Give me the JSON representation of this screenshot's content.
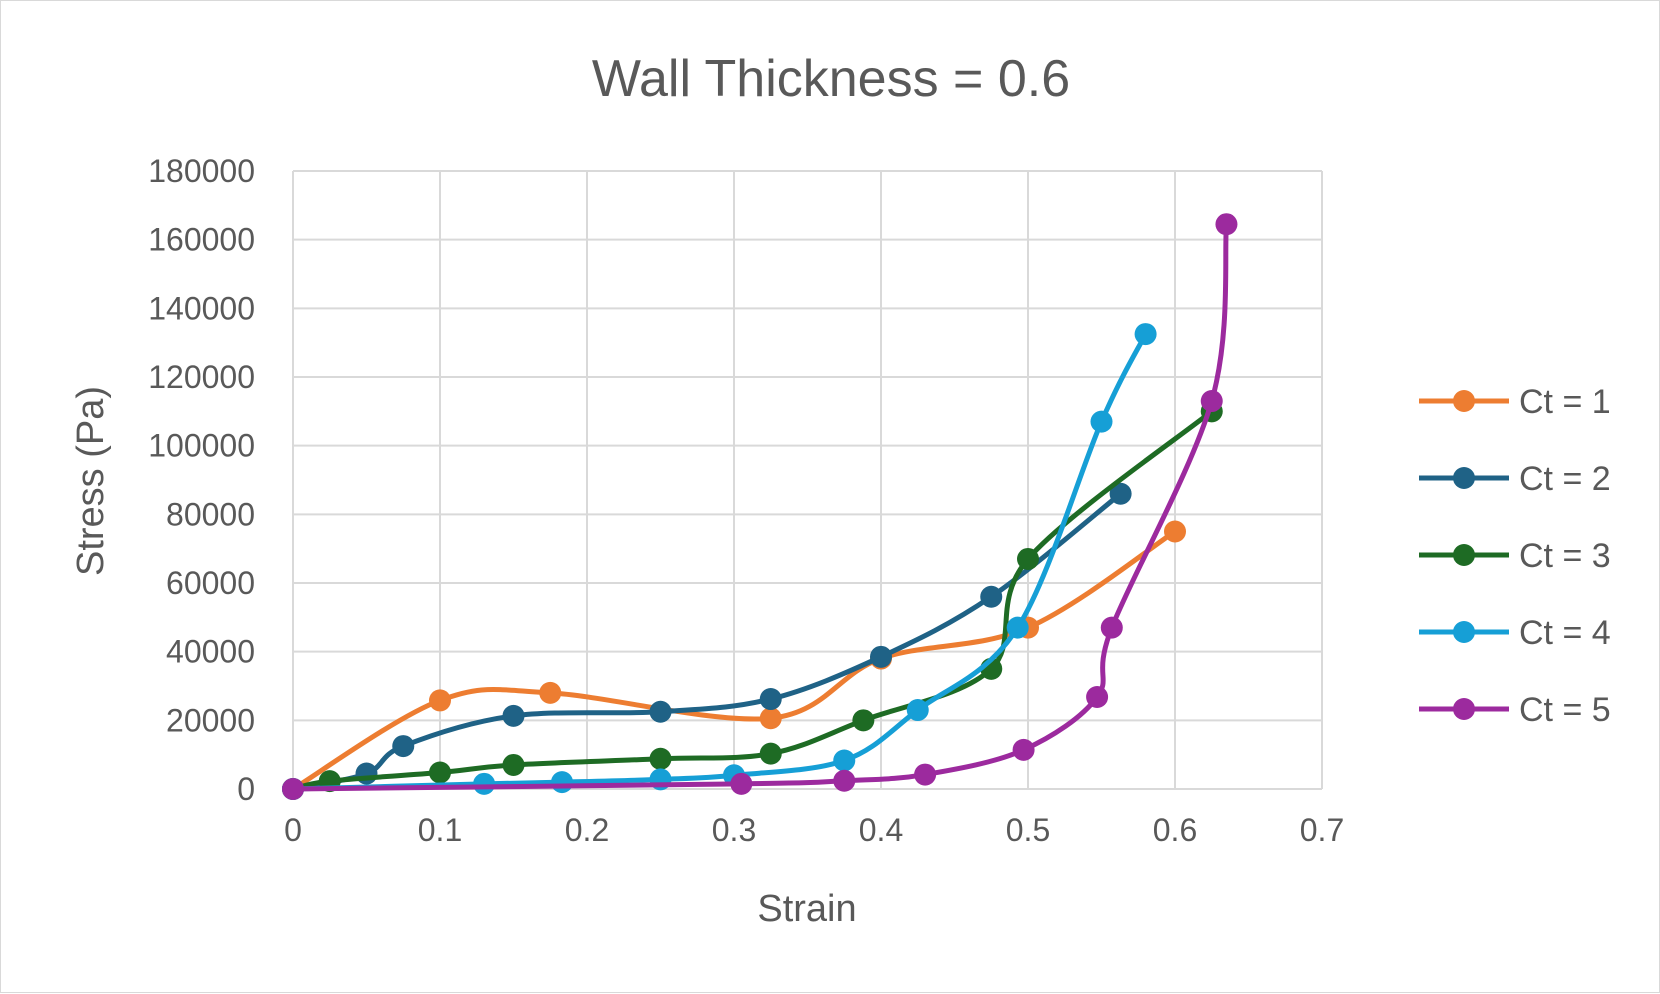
{
  "chart_data": {
    "type": "scatter",
    "title": "Wall Thickness = 0.6",
    "xlabel": "Strain",
    "ylabel": "Stress (Pa)",
    "xlim": [
      0,
      0.7
    ],
    "ylim": [
      0,
      180000
    ],
    "xticks": [
      "0",
      "0.1",
      "0.2",
      "0.3",
      "0.4",
      "0.5",
      "0.6",
      "0.7"
    ],
    "yticks": [
      "0",
      "20000",
      "40000",
      "60000",
      "80000",
      "100000",
      "120000",
      "140000",
      "160000",
      "180000"
    ],
    "grid": true,
    "legend_position": "right",
    "smooth_lines": true,
    "series": [
      {
        "name": "Ct = 1",
        "color": "#ED7D31",
        "x": [
          0,
          0.1,
          0.175,
          0.325,
          0.4,
          0.5,
          0.6
        ],
        "y": [
          0,
          25800,
          28000,
          20600,
          38000,
          47000,
          75000
        ]
      },
      {
        "name": "Ct = 2",
        "color": "#1F6286",
        "x": [
          0,
          0.05,
          0.075,
          0.15,
          0.25,
          0.325,
          0.4,
          0.475,
          0.563
        ],
        "y": [
          0,
          4500,
          12500,
          21300,
          22500,
          26200,
          38500,
          56000,
          86000
        ]
      },
      {
        "name": "Ct = 3",
        "color": "#1E6B24",
        "x": [
          0,
          0.025,
          0.1,
          0.15,
          0.25,
          0.325,
          0.388,
          0.475,
          0.5,
          0.625
        ],
        "y": [
          0,
          2300,
          4800,
          7000,
          8800,
          10300,
          20000,
          35000,
          67000,
          110000
        ]
      },
      {
        "name": "Ct = 4",
        "color": "#169FD6",
        "x": [
          0,
          0.13,
          0.183,
          0.25,
          0.3,
          0.375,
          0.425,
          0.493,
          0.55,
          0.58
        ],
        "y": [
          0,
          1500,
          2000,
          2800,
          4000,
          8300,
          23000,
          47000,
          107000,
          132500
        ]
      },
      {
        "name": "Ct = 5",
        "color": "#9C2A9E",
        "x": [
          0,
          0.305,
          0.375,
          0.43,
          0.497,
          0.547,
          0.557,
          0.625,
          0.635
        ],
        "y": [
          0,
          1500,
          2400,
          4200,
          11400,
          26800,
          47000,
          113000,
          164500
        ]
      }
    ]
  }
}
